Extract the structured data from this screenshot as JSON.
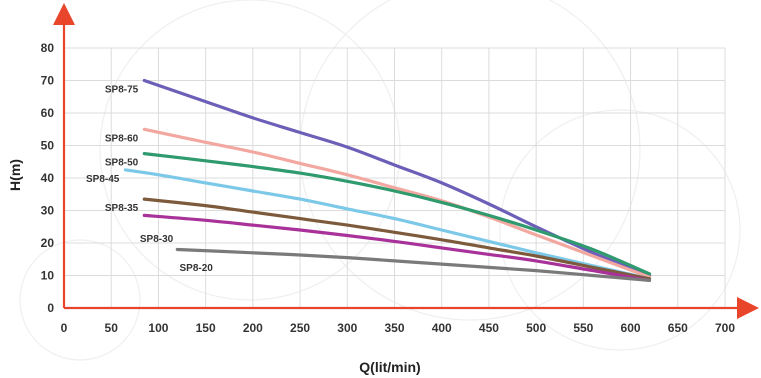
{
  "chart_data": {
    "type": "line",
    "xlabel": "Q(lit/min)",
    "ylabel": "H(m)",
    "xlim": [
      0,
      700
    ],
    "ylim": [
      0,
      80
    ],
    "xticks": [
      0,
      50,
      100,
      150,
      200,
      250,
      300,
      350,
      400,
      450,
      500,
      550,
      600,
      650,
      700
    ],
    "yticks": [
      0,
      10,
      20,
      30,
      40,
      50,
      60,
      70,
      80
    ],
    "grid": true,
    "axis_color": "#e8452a",
    "series": [
      {
        "name": "SP8-75",
        "color": "#6b5fb8",
        "points": [
          [
            85,
            70
          ],
          [
            150,
            63.5
          ],
          [
            200,
            58.5
          ],
          [
            250,
            54
          ],
          [
            300,
            49.5
          ],
          [
            350,
            44
          ],
          [
            400,
            38.5
          ],
          [
            450,
            32
          ],
          [
            500,
            25
          ],
          [
            560,
            17
          ],
          [
            620,
            10
          ]
        ]
      },
      {
        "name": "SP8-60",
        "color": "#f2a8a0",
        "points": [
          [
            85,
            55
          ],
          [
            150,
            51
          ],
          [
            200,
            48
          ],
          [
            250,
            44.5
          ],
          [
            300,
            41
          ],
          [
            350,
            37
          ],
          [
            400,
            33
          ],
          [
            450,
            28
          ],
          [
            500,
            22.5
          ],
          [
            560,
            16
          ],
          [
            620,
            9.5
          ]
        ]
      },
      {
        "name": "SP8-50",
        "color": "#2f9a6e",
        "points": [
          [
            85,
            47.5
          ],
          [
            150,
            45.3
          ],
          [
            200,
            43.5
          ],
          [
            250,
            41.5
          ],
          [
            300,
            39
          ],
          [
            350,
            36
          ],
          [
            400,
            32.5
          ],
          [
            450,
            28.5
          ],
          [
            500,
            24
          ],
          [
            560,
            18
          ],
          [
            620,
            10.5
          ]
        ]
      },
      {
        "name": "SP8-45",
        "color": "#7cc8e8",
        "points": [
          [
            65,
            42.5
          ],
          [
            100,
            41
          ],
          [
            150,
            38.5
          ],
          [
            200,
            36
          ],
          [
            250,
            33.5
          ],
          [
            300,
            30.5
          ],
          [
            350,
            27.5
          ],
          [
            400,
            24
          ],
          [
            450,
            20.5
          ],
          [
            500,
            17
          ],
          [
            560,
            13
          ],
          [
            620,
            9
          ]
        ]
      },
      {
        "name": "SP8-35",
        "color": "#7d5a3c",
        "points": [
          [
            85,
            33.5
          ],
          [
            150,
            31.5
          ],
          [
            200,
            29.5
          ],
          [
            250,
            27.5
          ],
          [
            300,
            25.5
          ],
          [
            350,
            23.3
          ],
          [
            400,
            21
          ],
          [
            450,
            18.5
          ],
          [
            500,
            16
          ],
          [
            560,
            12.5
          ],
          [
            620,
            9
          ]
        ]
      },
      {
        "name": "SP8-30",
        "color": "#a8329a",
        "points": [
          [
            85,
            28.5
          ],
          [
            150,
            27
          ],
          [
            200,
            25.5
          ],
          [
            250,
            24
          ],
          [
            300,
            22.3
          ],
          [
            350,
            20.5
          ],
          [
            400,
            18.5
          ],
          [
            450,
            16.5
          ],
          [
            500,
            14.5
          ],
          [
            560,
            11.5
          ],
          [
            620,
            8.5
          ]
        ]
      },
      {
        "name": "SP8-20",
        "color": "#7a7a7a",
        "points": [
          [
            120,
            18
          ],
          [
            200,
            17
          ],
          [
            250,
            16.3
          ],
          [
            300,
            15.5
          ],
          [
            350,
            14.5
          ],
          [
            400,
            13.5
          ],
          [
            450,
            12.5
          ],
          [
            500,
            11.5
          ],
          [
            560,
            10
          ],
          [
            620,
            8.5
          ]
        ]
      }
    ]
  }
}
